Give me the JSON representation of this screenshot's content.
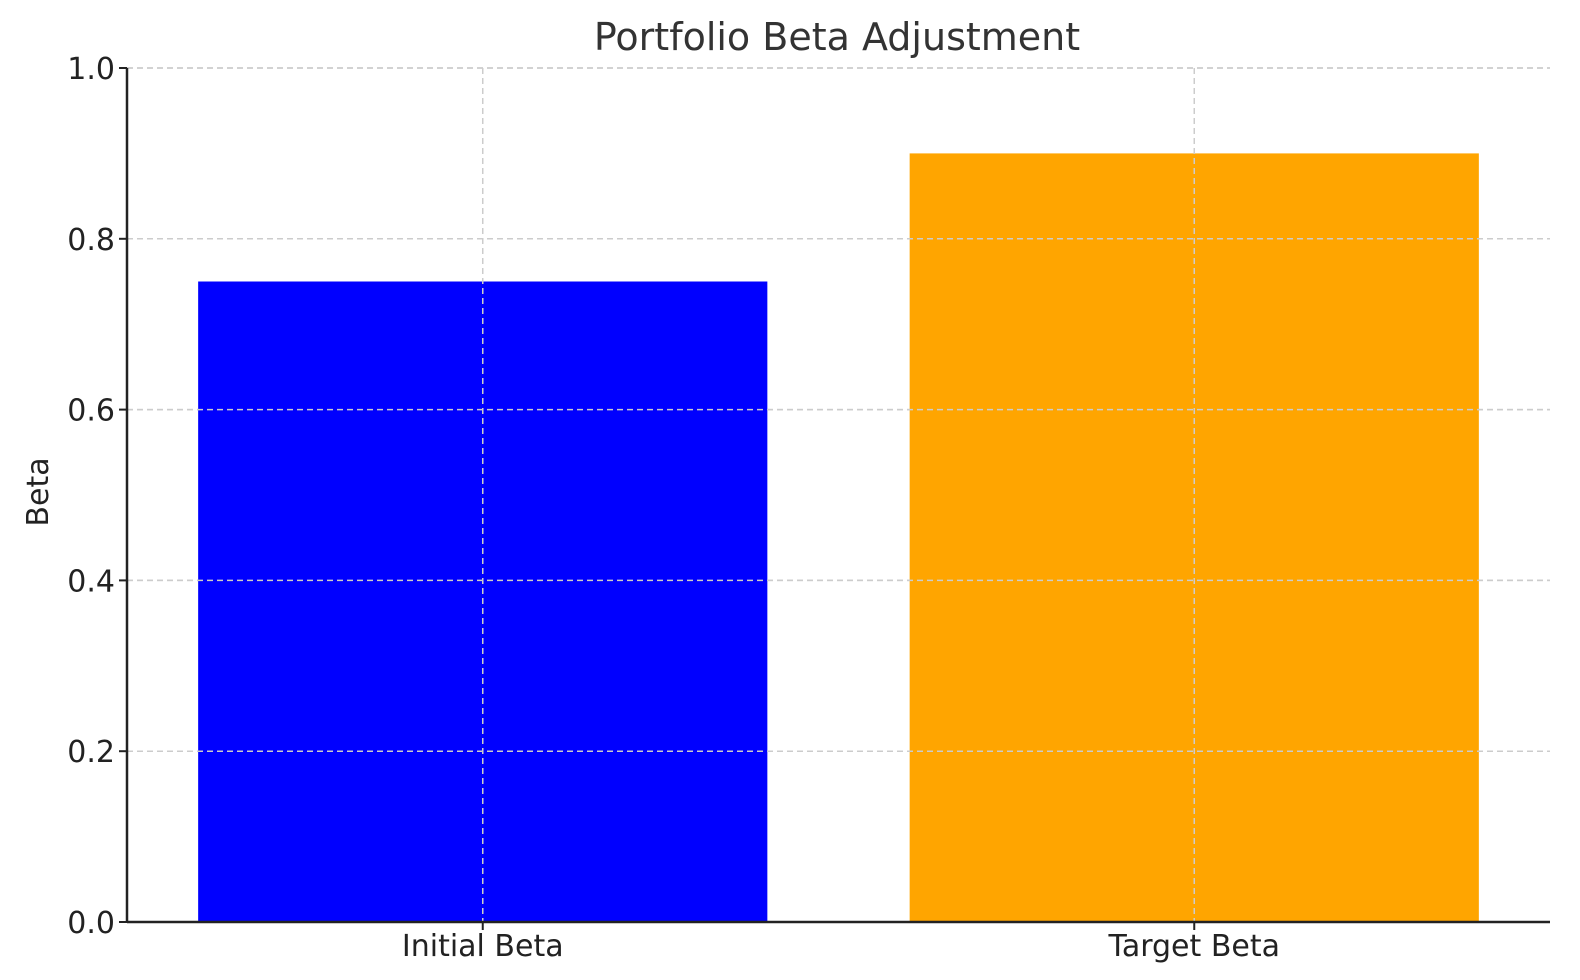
{
  "chart_data": {
    "type": "bar",
    "title": "Portfolio Beta Adjustment",
    "xlabel": "",
    "ylabel": "Beta",
    "categories": [
      "Initial Beta",
      "Target Beta"
    ],
    "values": [
      0.75,
      0.9
    ],
    "colors": [
      "#0000ff",
      "#ffa500"
    ],
    "ylim": [
      0,
      1.0
    ],
    "yticks": [
      0.0,
      0.2,
      0.4,
      0.6,
      0.8,
      1.0
    ],
    "ytick_labels": [
      "0.0",
      "0.2",
      "0.4",
      "0.6",
      "0.8",
      "1.0"
    ],
    "grid": true,
    "legend": "none"
  }
}
